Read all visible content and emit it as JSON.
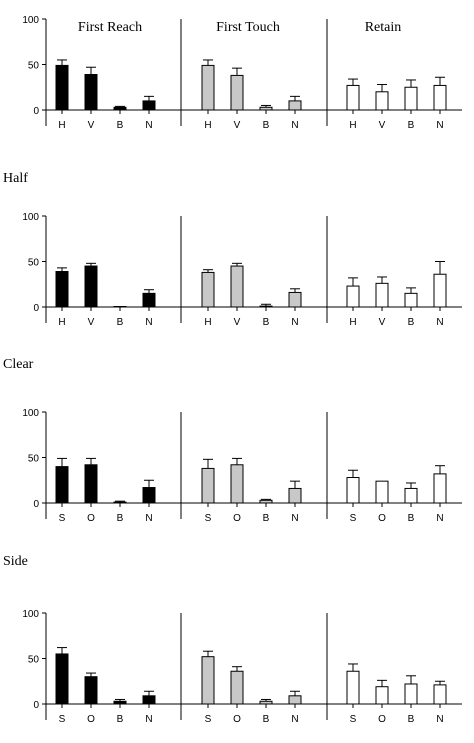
{
  "colors": {
    "First Reach": "#000000",
    "First Touch": "#c8c8c8",
    "Retain": "#ffffff"
  },
  "chart_data": [
    {
      "type": "bar",
      "panel_titles": [
        "First Reach",
        "First Touch",
        "Retain"
      ],
      "row_title": "",
      "ylim": [
        0,
        100
      ],
      "yticks": [
        0,
        50,
        100
      ],
      "categories": [
        "H",
        "V",
        "B",
        "N"
      ],
      "series": [
        {
          "name": "First Reach",
          "values": [
            49,
            39,
            3,
            10
          ],
          "errors": [
            6,
            8,
            1,
            5
          ]
        },
        {
          "name": "First Touch",
          "values": [
            49,
            38,
            3,
            10
          ],
          "errors": [
            6,
            8,
            2,
            5
          ]
        },
        {
          "name": "Retain",
          "values": [
            27,
            20,
            25,
            27
          ],
          "errors": [
            7,
            8,
            8,
            9
          ]
        }
      ]
    },
    {
      "type": "bar",
      "row_title": "Half",
      "ylim": [
        0,
        100
      ],
      "yticks": [
        0,
        50,
        100
      ],
      "categories": [
        "H",
        "V",
        "B",
        "N"
      ],
      "series": [
        {
          "name": "First Reach",
          "values": [
            39,
            45,
            0,
            15
          ],
          "errors": [
            4,
            3,
            0,
            4
          ]
        },
        {
          "name": "First Touch",
          "values": [
            38,
            45,
            1,
            16
          ],
          "errors": [
            3,
            3,
            2,
            4
          ]
        },
        {
          "name": "Retain",
          "values": [
            23,
            26,
            15,
            36
          ],
          "errors": [
            9,
            7,
            6,
            14
          ]
        }
      ]
    },
    {
      "type": "bar",
      "row_title": "Clear",
      "ylim": [
        0,
        100
      ],
      "yticks": [
        0,
        50,
        100
      ],
      "categories": [
        "S",
        "O",
        "B",
        "N"
      ],
      "series": [
        {
          "name": "First Reach",
          "values": [
            40,
            42,
            1,
            17
          ],
          "errors": [
            9,
            7,
            1,
            8
          ]
        },
        {
          "name": "First Touch",
          "values": [
            38,
            42,
            3,
            16
          ],
          "errors": [
            10,
            7,
            1,
            8
          ]
        },
        {
          "name": "Retain",
          "values": [
            28,
            24,
            16,
            32
          ],
          "errors": [
            8,
            0,
            6,
            9
          ]
        }
      ]
    },
    {
      "type": "bar",
      "row_title": "Side",
      "ylim": [
        0,
        100
      ],
      "yticks": [
        0,
        50,
        100
      ],
      "categories": [
        "S",
        "O",
        "B",
        "N"
      ],
      "series": [
        {
          "name": "First Reach",
          "values": [
            55,
            30,
            3,
            9
          ],
          "errors": [
            7,
            4,
            2,
            5
          ]
        },
        {
          "name": "First Touch",
          "values": [
            52,
            36,
            3,
            9
          ],
          "errors": [
            6,
            5,
            2,
            5
          ]
        },
        {
          "name": "Retain",
          "values": [
            36,
            19,
            22,
            21
          ],
          "errors": [
            8,
            7,
            9,
            4
          ]
        }
      ]
    }
  ]
}
